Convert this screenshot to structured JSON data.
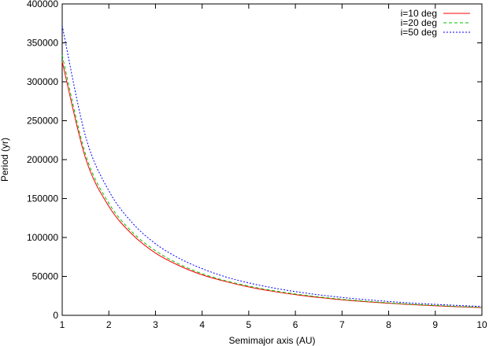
{
  "chart_data": {
    "type": "line",
    "title": "",
    "xlabel": "Semimajor axis (AU)",
    "ylabel": "Period (yr)",
    "xlim": [
      1,
      10
    ],
    "ylim": [
      0,
      400000
    ],
    "x_ticks": [
      "1",
      "2",
      "3",
      "4",
      "5",
      "6",
      "7",
      "8",
      "9",
      "10"
    ],
    "y_ticks": [
      "0",
      "50000",
      "100000",
      "150000",
      "200000",
      "250000",
      "300000",
      "350000",
      "400000"
    ],
    "grid": false,
    "legend_position": "top-right",
    "x": [
      1,
      1.5,
      2,
      2.5,
      3,
      3.5,
      4,
      4.5,
      5,
      5.5,
      6,
      6.5,
      7,
      7.5,
      8,
      8.5,
      9,
      9.5,
      10
    ],
    "series": [
      {
        "name": "i=10 deg",
        "color": "#ff0000",
        "dash": "solid",
        "values": [
          326000,
          202000,
          140000,
          104000,
          80000,
          64000,
          52000,
          43500,
          36500,
          31000,
          26600,
          23000,
          20000,
          17600,
          15500,
          13800,
          12300,
          11000,
          9900
        ]
      },
      {
        "name": "i=20 deg",
        "color": "#00c000",
        "dash": "dashed",
        "values": [
          334000,
          207000,
          144000,
          107000,
          83000,
          66000,
          53500,
          44500,
          37500,
          32000,
          27400,
          23700,
          20600,
          18100,
          16000,
          14200,
          12700,
          11400,
          10200
        ]
      },
      {
        "name": "i=50 deg",
        "color": "#0000ff",
        "dash": "dotted",
        "values": [
          372000,
          230000,
          160000,
          119000,
          92000,
          73500,
          60000,
          49500,
          41700,
          35500,
          30500,
          26400,
          23000,
          20200,
          17800,
          15800,
          14100,
          12700,
          11400
        ]
      }
    ]
  }
}
